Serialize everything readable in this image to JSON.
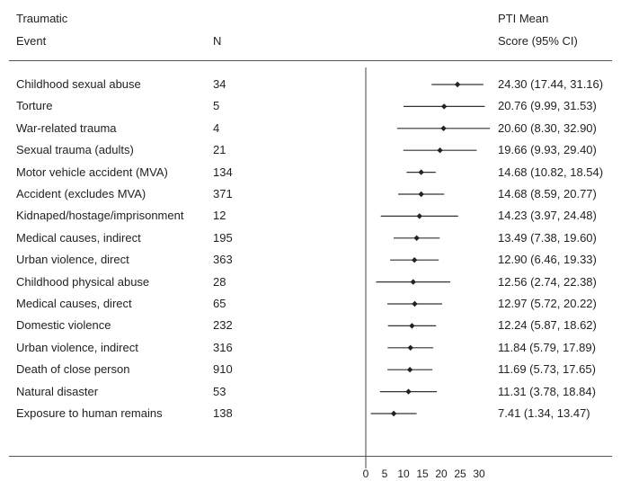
{
  "headers": {
    "event_line1": "Traumatic",
    "event_line2": "Event",
    "n": "N",
    "score_line1": "PTI Mean",
    "score_line2": "Score (95% CI)"
  },
  "chart_data": {
    "type": "forest",
    "xlim": [
      0,
      30
    ],
    "x_ticks": [
      "0",
      "5",
      "10",
      "15",
      "20",
      "25",
      "30"
    ],
    "rows": [
      {
        "event": "Childhood sexual abuse",
        "n": "34",
        "mean": 24.3,
        "lo": 17.44,
        "hi": 31.16,
        "label": "24.30 (17.44, 31.16)"
      },
      {
        "event": "Torture",
        "n": "5",
        "mean": 20.76,
        "lo": 9.99,
        "hi": 31.53,
        "label": "20.76 (9.99, 31.53)"
      },
      {
        "event": "War-related trauma",
        "n": "4",
        "mean": 20.6,
        "lo": 8.3,
        "hi": 32.9,
        "label": "20.60 (8.30, 32.90)"
      },
      {
        "event": "Sexual trauma (adults)",
        "n": "21",
        "mean": 19.66,
        "lo": 9.93,
        "hi": 29.4,
        "label": "19.66 (9.93, 29.40)"
      },
      {
        "event": "Motor vehicle accident (MVA)",
        "n": "134",
        "mean": 14.68,
        "lo": 10.82,
        "hi": 18.54,
        "label": "14.68 (10.82, 18.54)"
      },
      {
        "event": "Accident (excludes MVA)",
        "n": "371",
        "mean": 14.68,
        "lo": 8.59,
        "hi": 20.77,
        "label": "14.68 (8.59, 20.77)"
      },
      {
        "event": "Kidnaped/hostage/imprisonment",
        "n": "12",
        "mean": 14.23,
        "lo": 3.97,
        "hi": 24.48,
        "label": "14.23 (3.97, 24.48)"
      },
      {
        "event": "Medical causes, indirect",
        "n": "195",
        "mean": 13.49,
        "lo": 7.38,
        "hi": 19.6,
        "label": "13.49 (7.38, 19.60)"
      },
      {
        "event": "Urban violence, direct",
        "n": "363",
        "mean": 12.9,
        "lo": 6.46,
        "hi": 19.33,
        "label": "12.90 (6.46, 19.33)"
      },
      {
        "event": "Childhood physical abuse",
        "n": "28",
        "mean": 12.56,
        "lo": 2.74,
        "hi": 22.38,
        "label": "12.56 (2.74, 22.38)"
      },
      {
        "event": "Medical causes, direct",
        "n": "65",
        "mean": 12.97,
        "lo": 5.72,
        "hi": 20.22,
        "label": "12.97 (5.72, 20.22)"
      },
      {
        "event": "Domestic violence",
        "n": "232",
        "mean": 12.24,
        "lo": 5.87,
        "hi": 18.62,
        "label": "12.24 (5.87, 18.62)"
      },
      {
        "event": "Urban violence, indirect",
        "n": "316",
        "mean": 11.84,
        "lo": 5.79,
        "hi": 17.89,
        "label": "11.84 (5.79, 17.89)"
      },
      {
        "event": "Death of close person",
        "n": "910",
        "mean": 11.69,
        "lo": 5.73,
        "hi": 17.65,
        "label": "11.69 (5.73, 17.65)"
      },
      {
        "event": "Natural disaster",
        "n": "53",
        "mean": 11.31,
        "lo": 3.78,
        "hi": 18.84,
        "label": "11.31 (3.78, 18.84)"
      },
      {
        "event": "Exposure to human remains",
        "n": "138",
        "mean": 7.41,
        "lo": 1.34,
        "hi": 13.47,
        "label": "7.41 (1.34, 13.47)"
      }
    ]
  }
}
